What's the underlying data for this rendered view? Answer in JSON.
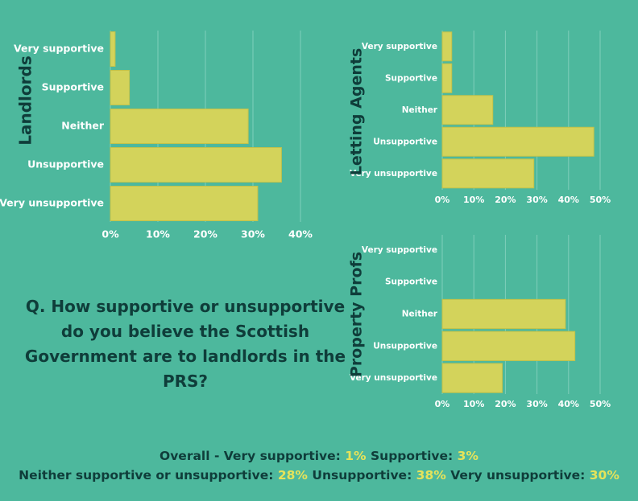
{
  "question": "Q. How supportive or unsupportive do you believe the Scottish Government are to landlords in the PRS?",
  "summary": {
    "line1": [
      {
        "label": "Overall - Very supportive: ",
        "value": "1%"
      },
      {
        "label": "Supportive: ",
        "value": "3%"
      }
    ],
    "line2": [
      {
        "label": "Neither supportive or unsupportive: ",
        "value": "28%"
      },
      {
        "label": "Unsupportive: ",
        "value": "38%"
      },
      {
        "label": "Very unsupportive: ",
        "value": "30%"
      }
    ]
  },
  "colors": {
    "background": "#4db89d",
    "bar": "#d3d35b",
    "title": "#0f3d3a",
    "highlight": "#e6e35a"
  },
  "chart_data": [
    {
      "type": "bar",
      "orientation": "horizontal",
      "title": "Landlords",
      "categories": [
        "Very supportive",
        "Supportive",
        "Neither",
        "Unsupportive",
        "Very unsupportive"
      ],
      "values": [
        1,
        4,
        29,
        36,
        31
      ],
      "xlim": [
        0,
        40
      ],
      "ticks": [
        "0%",
        "10%",
        "20%",
        "30%",
        "40%"
      ],
      "grid": true
    },
    {
      "type": "bar",
      "orientation": "horizontal",
      "title": "Letting Agents",
      "categories": [
        "Very supportive",
        "Supportive",
        "Neither",
        "Unsupportive",
        "Very unsupportive"
      ],
      "values": [
        3,
        3,
        16,
        48,
        29
      ],
      "xlim": [
        0,
        50
      ],
      "ticks": [
        "0%",
        "10%",
        "20%",
        "30%",
        "40%",
        "50%"
      ],
      "grid": true
    },
    {
      "type": "bar",
      "orientation": "horizontal",
      "title": "Property Profs",
      "categories": [
        "Very supportive",
        "Supportive",
        "Neither",
        "Unsupportive",
        "Very unsupportive"
      ],
      "values": [
        0,
        0,
        39,
        42,
        19
      ],
      "xlim": [
        0,
        50
      ],
      "ticks": [
        "0%",
        "10%",
        "20%",
        "30%",
        "40%",
        "50%"
      ],
      "grid": true
    }
  ]
}
